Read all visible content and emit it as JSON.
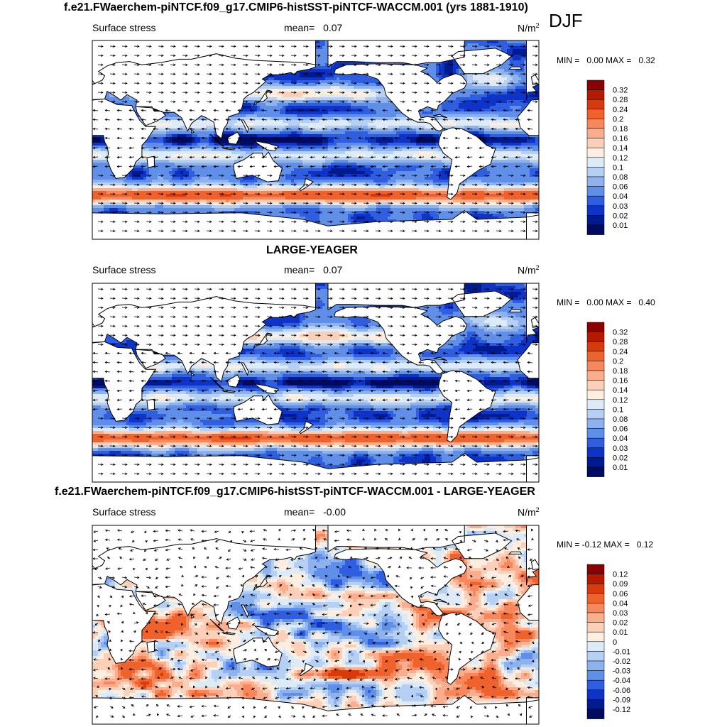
{
  "season": "DJF",
  "panels": [
    {
      "id": "top",
      "title": "f.e21.FWaerchem-piNTCF.f09_g17.CMIP6-histSST-piNTCF-WACCM.001 (yrs 1881-1910)",
      "left_label": "Surface stress",
      "mean_label": "mean=",
      "mean_value": "0.07",
      "units": "N/m",
      "units_exp": "2",
      "min_max": "MIN =   0.00 MAX =   0.32",
      "type": "absolute"
    },
    {
      "id": "middle",
      "title": "LARGE-YEAGER",
      "left_label": "Surface stress",
      "mean_label": "mean=",
      "mean_value": "0.07",
      "units": "N/m",
      "units_exp": "2",
      "min_max": "MIN =   0.00 MAX =   0.40",
      "type": "absolute"
    },
    {
      "id": "bottom",
      "title": "f.e21.FWaerchem-piNTCF.f09_g17.CMIP6-histSST-piNTCF-WACCM.001 - LARGE-YEAGER",
      "left_label": "Surface stress",
      "mean_label": "mean=",
      "mean_value": "-0.00",
      "units": "N/m",
      "units_exp": "2",
      "min_max": "MIN = -0.12 MAX =   0.12",
      "type": "difference"
    }
  ],
  "colorbars": {
    "absolute": {
      "labels": [
        "0.32",
        "0.28",
        "0.24",
        "0.2",
        "0.18",
        "0.16",
        "0.14",
        "0.12",
        "0.1",
        "0.08",
        "0.06",
        "0.04",
        "0.03",
        "0.02",
        "0.01"
      ],
      "colors": [
        "#8b0000",
        "#b51a00",
        "#d83a0b",
        "#f0622c",
        "#f8875b",
        "#fbae8e",
        "#fcd0b8",
        "#fdeee0",
        "#ddebf9",
        "#b6d0f4",
        "#8db2ee",
        "#5f8fe8",
        "#2f5ee0",
        "#0d34c6",
        "#001a8f",
        "#000a60"
      ]
    },
    "difference": {
      "labels": [
        "0.12",
        "0.09",
        "0.06",
        "0.04",
        "0.03",
        "0.02",
        "0.01",
        "0",
        "-0.01",
        "-0.02",
        "-0.03",
        "-0.04",
        "-0.06",
        "-0.09",
        "-0.12"
      ],
      "colors": [
        "#8b0000",
        "#b51a00",
        "#d83a0b",
        "#f0622c",
        "#f8875b",
        "#fbae8e",
        "#fcd0b8",
        "#fdeee0",
        "#ddebf9",
        "#b6d0f4",
        "#8db2ee",
        "#5f8fe8",
        "#2f5ee0",
        "#0d34c6",
        "#001a8f",
        "#000a60"
      ]
    }
  },
  "colors": {
    "ocean_low": "#0a2fd0",
    "ocean_mid": "#5f8fe8",
    "ocean_light": "#c9dcf7",
    "ocean_warm": "#f8875b",
    "ocean_hot": "#d83a0b",
    "land": "#ffffff",
    "coast": "#000000"
  },
  "chart_data": [
    {
      "type": "heatmap",
      "title": "f.e21.FWaerchem-piNTCF.f09_g17.CMIP6-histSST-piNTCF-WACCM.001 (yrs 1881-1910)",
      "variable": "Surface stress",
      "units": "N/m2",
      "season": "DJF",
      "mean": 0.07,
      "min": 0.0,
      "max": 0.32,
      "contour_levels": [
        0.01,
        0.02,
        0.03,
        0.04,
        0.06,
        0.08,
        0.1,
        0.12,
        0.14,
        0.16,
        0.18,
        0.2,
        0.24,
        0.28,
        0.32
      ],
      "vectors": true,
      "projection": "cylindrical equidistant, 0-360 E, 90S-90N"
    },
    {
      "type": "heatmap",
      "title": "LARGE-YEAGER",
      "variable": "Surface stress",
      "units": "N/m2",
      "mean": 0.07,
      "min": 0.0,
      "max": 0.4,
      "contour_levels": [
        0.01,
        0.02,
        0.03,
        0.04,
        0.06,
        0.08,
        0.1,
        0.12,
        0.14,
        0.16,
        0.18,
        0.2,
        0.24,
        0.28,
        0.32
      ],
      "vectors": true
    },
    {
      "type": "heatmap",
      "title": "f.e21.FWaerchem-piNTCF.f09_g17.CMIP6-histSST-piNTCF-WACCM.001 - LARGE-YEAGER",
      "variable": "Surface stress",
      "units": "N/m2",
      "mean": -0.0,
      "min": -0.12,
      "max": 0.12,
      "contour_levels": [
        -0.12,
        -0.09,
        -0.06,
        -0.04,
        -0.03,
        -0.02,
        -0.01,
        0,
        0.01,
        0.02,
        0.03,
        0.04,
        0.06,
        0.09,
        0.12
      ],
      "vectors": true
    }
  ]
}
